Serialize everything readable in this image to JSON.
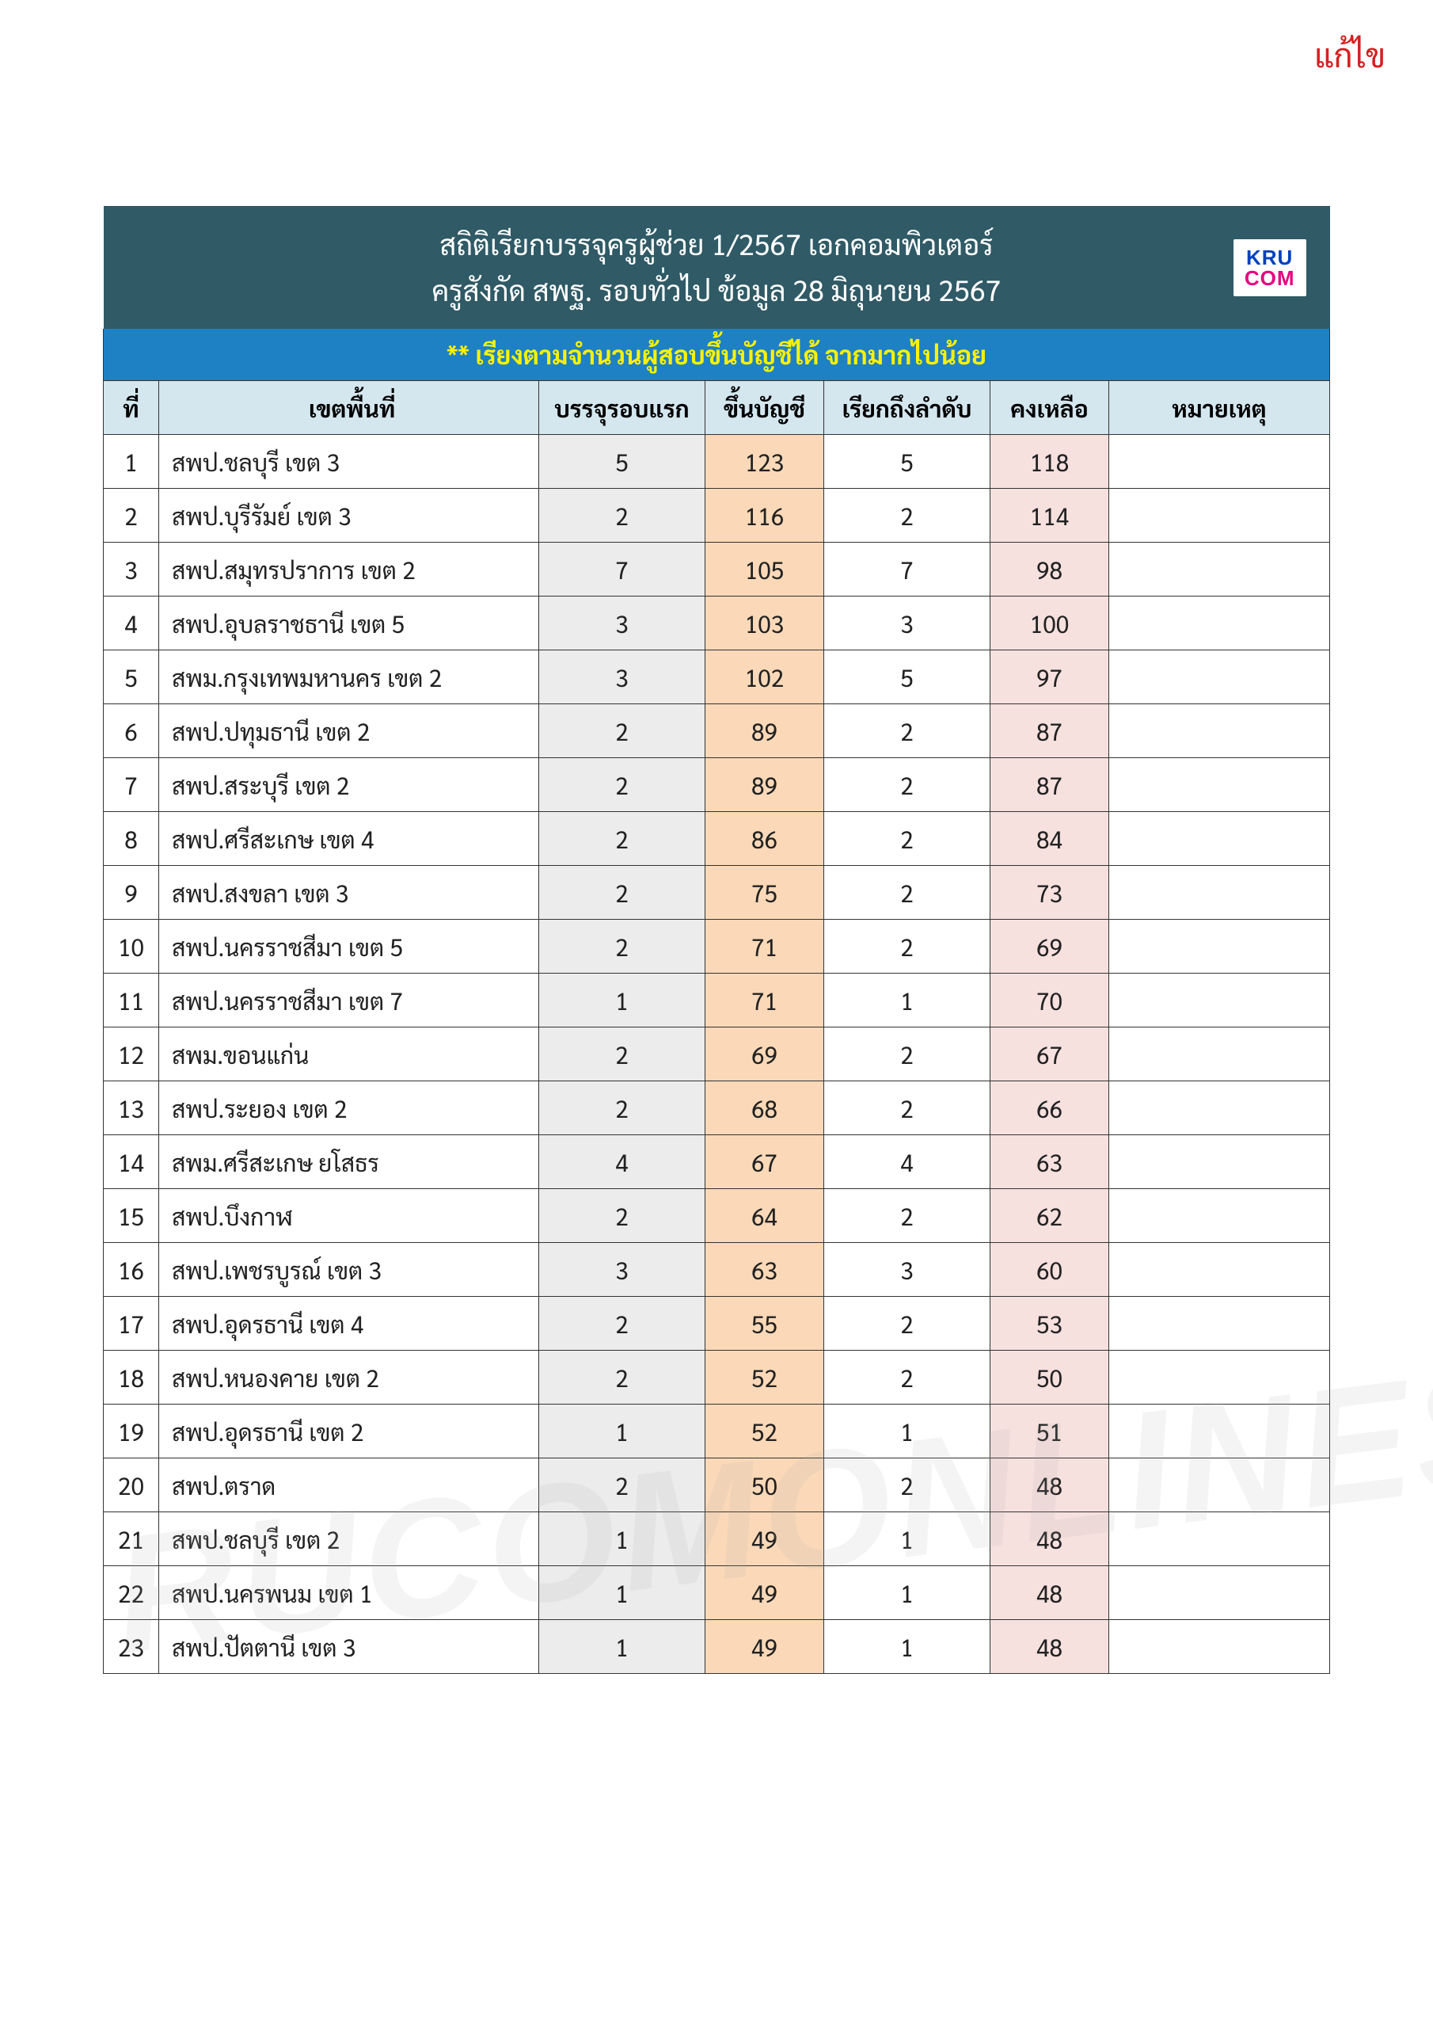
{
  "top_label": "แก้ไข",
  "watermark_text": "RUCOMONLINES",
  "colors": {
    "edit_label": "#d62020",
    "title_bg": "#2f5a66",
    "title_fg": "#ffffff",
    "sort_bg": "#1e81c4",
    "sort_fg": "#fff200",
    "head_bg": "#d4e6ee",
    "col_first_bg": "#ececec",
    "col_list_bg": "#fbd9b8",
    "col_rem_bg": "#f6e1df",
    "border": "#333333",
    "logo_kru": "#0040c0",
    "logo_com": "#e5007e",
    "watermark": "rgba(170,170,170,0.13)"
  },
  "title": {
    "line1": "สถิติเรียกบรรจุครูผู้ช่วย 1/2567 เอกคอมพิวเตอร์",
    "line2": "ครูสังกัด สพฐ. รอบทั่วไป ข้อมูล 28 มิถุนายน 2567"
  },
  "logo": {
    "line1": "KRU",
    "line2": "COM"
  },
  "sort_note": "** เรียงตามจำนวนผู้สอบขึ้นบัญชีได้ จากมากไปน้อย",
  "columns": {
    "idx": "ที่",
    "area": "เขตพื้นที่",
    "first": "บรรจุรอบแรก",
    "list": "ขึ้นบัญชี",
    "call": "เรียกถึงลำดับ",
    "remain": "คงเหลือ",
    "note": "หมายเหตุ"
  },
  "rows": [
    {
      "idx": 1,
      "area": "สพป.ชลบุรี เขต 3",
      "first": 5,
      "list": 123,
      "call": 5,
      "remain": 118,
      "note": ""
    },
    {
      "idx": 2,
      "area": "สพป.บุรีรัมย์ เขต 3",
      "first": 2,
      "list": 116,
      "call": 2,
      "remain": 114,
      "note": ""
    },
    {
      "idx": 3,
      "area": "สพป.สมุทรปราการ เขต 2",
      "first": 7,
      "list": 105,
      "call": 7,
      "remain": 98,
      "note": ""
    },
    {
      "idx": 4,
      "area": "สพป.อุบลราชธานี เขต 5",
      "first": 3,
      "list": 103,
      "call": 3,
      "remain": 100,
      "note": ""
    },
    {
      "idx": 5,
      "area": "สพม.กรุงเทพมหานคร เขต 2",
      "first": 3,
      "list": 102,
      "call": 5,
      "remain": 97,
      "note": ""
    },
    {
      "idx": 6,
      "area": "สพป.ปทุมธานี เขต 2",
      "first": 2,
      "list": 89,
      "call": 2,
      "remain": 87,
      "note": ""
    },
    {
      "idx": 7,
      "area": "สพป.สระบุรี เขต 2",
      "first": 2,
      "list": 89,
      "call": 2,
      "remain": 87,
      "note": ""
    },
    {
      "idx": 8,
      "area": "สพป.ศรีสะเกษ เขต 4",
      "first": 2,
      "list": 86,
      "call": 2,
      "remain": 84,
      "note": ""
    },
    {
      "idx": 9,
      "area": "สพป.สงขลา เขต 3",
      "first": 2,
      "list": 75,
      "call": 2,
      "remain": 73,
      "note": ""
    },
    {
      "idx": 10,
      "area": "สพป.นครราชสีมา เขต 5",
      "first": 2,
      "list": 71,
      "call": 2,
      "remain": 69,
      "note": ""
    },
    {
      "idx": 11,
      "area": "สพป.นครราชสีมา เขต 7",
      "first": 1,
      "list": 71,
      "call": 1,
      "remain": 70,
      "note": ""
    },
    {
      "idx": 12,
      "area": "สพม.ขอนแก่น",
      "first": 2,
      "list": 69,
      "call": 2,
      "remain": 67,
      "note": ""
    },
    {
      "idx": 13,
      "area": "สพป.ระยอง เขต 2",
      "first": 2,
      "list": 68,
      "call": 2,
      "remain": 66,
      "note": ""
    },
    {
      "idx": 14,
      "area": "สพม.ศรีสะเกษ ยโสธร",
      "first": 4,
      "list": 67,
      "call": 4,
      "remain": 63,
      "note": ""
    },
    {
      "idx": 15,
      "area": "สพป.บึงกาฬ",
      "first": 2,
      "list": 64,
      "call": 2,
      "remain": 62,
      "note": ""
    },
    {
      "idx": 16,
      "area": "สพป.เพชรบูรณ์ เขต 3",
      "first": 3,
      "list": 63,
      "call": 3,
      "remain": 60,
      "note": ""
    },
    {
      "idx": 17,
      "area": "สพป.อุดรธานี เขต 4",
      "first": 2,
      "list": 55,
      "call": 2,
      "remain": 53,
      "note": ""
    },
    {
      "idx": 18,
      "area": "สพป.หนองคาย เขต 2",
      "first": 2,
      "list": 52,
      "call": 2,
      "remain": 50,
      "note": ""
    },
    {
      "idx": 19,
      "area": "สพป.อุดรธานี เขต 2",
      "first": 1,
      "list": 52,
      "call": 1,
      "remain": 51,
      "note": ""
    },
    {
      "idx": 20,
      "area": "สพป.ตราด",
      "first": 2,
      "list": 50,
      "call": 2,
      "remain": 48,
      "note": ""
    },
    {
      "idx": 21,
      "area": "สพป.ชลบุรี เขต 2",
      "first": 1,
      "list": 49,
      "call": 1,
      "remain": 48,
      "note": ""
    },
    {
      "idx": 22,
      "area": "สพป.นครพนม เขต 1",
      "first": 1,
      "list": 49,
      "call": 1,
      "remain": 48,
      "note": ""
    },
    {
      "idx": 23,
      "area": "สพป.ปัตตานี เขต 3",
      "first": 1,
      "list": 49,
      "call": 1,
      "remain": 48,
      "note": ""
    }
  ]
}
